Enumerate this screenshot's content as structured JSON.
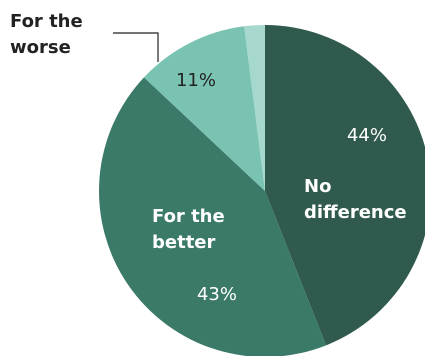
{
  "chart_data": {
    "type": "pie",
    "slices": [
      {
        "label": "No difference",
        "label_lines": [
          "No",
          "difference"
        ],
        "value": 44,
        "value_label": "44%",
        "color": "#2f5a4d"
      },
      {
        "label": "For the better",
        "label_lines": [
          "For the",
          "better"
        ],
        "value": 43,
        "value_label": "43%",
        "color": "#3b7a69"
      },
      {
        "label": "For the worse",
        "label_lines": [
          "For the",
          "worse"
        ],
        "value": 11,
        "value_label": "11%",
        "color": "#7ac3b3"
      },
      {
        "label": "",
        "label_lines": [],
        "value": 2,
        "value_label": "",
        "color": "#a6d8ce"
      }
    ],
    "title": "",
    "legend": "none"
  }
}
